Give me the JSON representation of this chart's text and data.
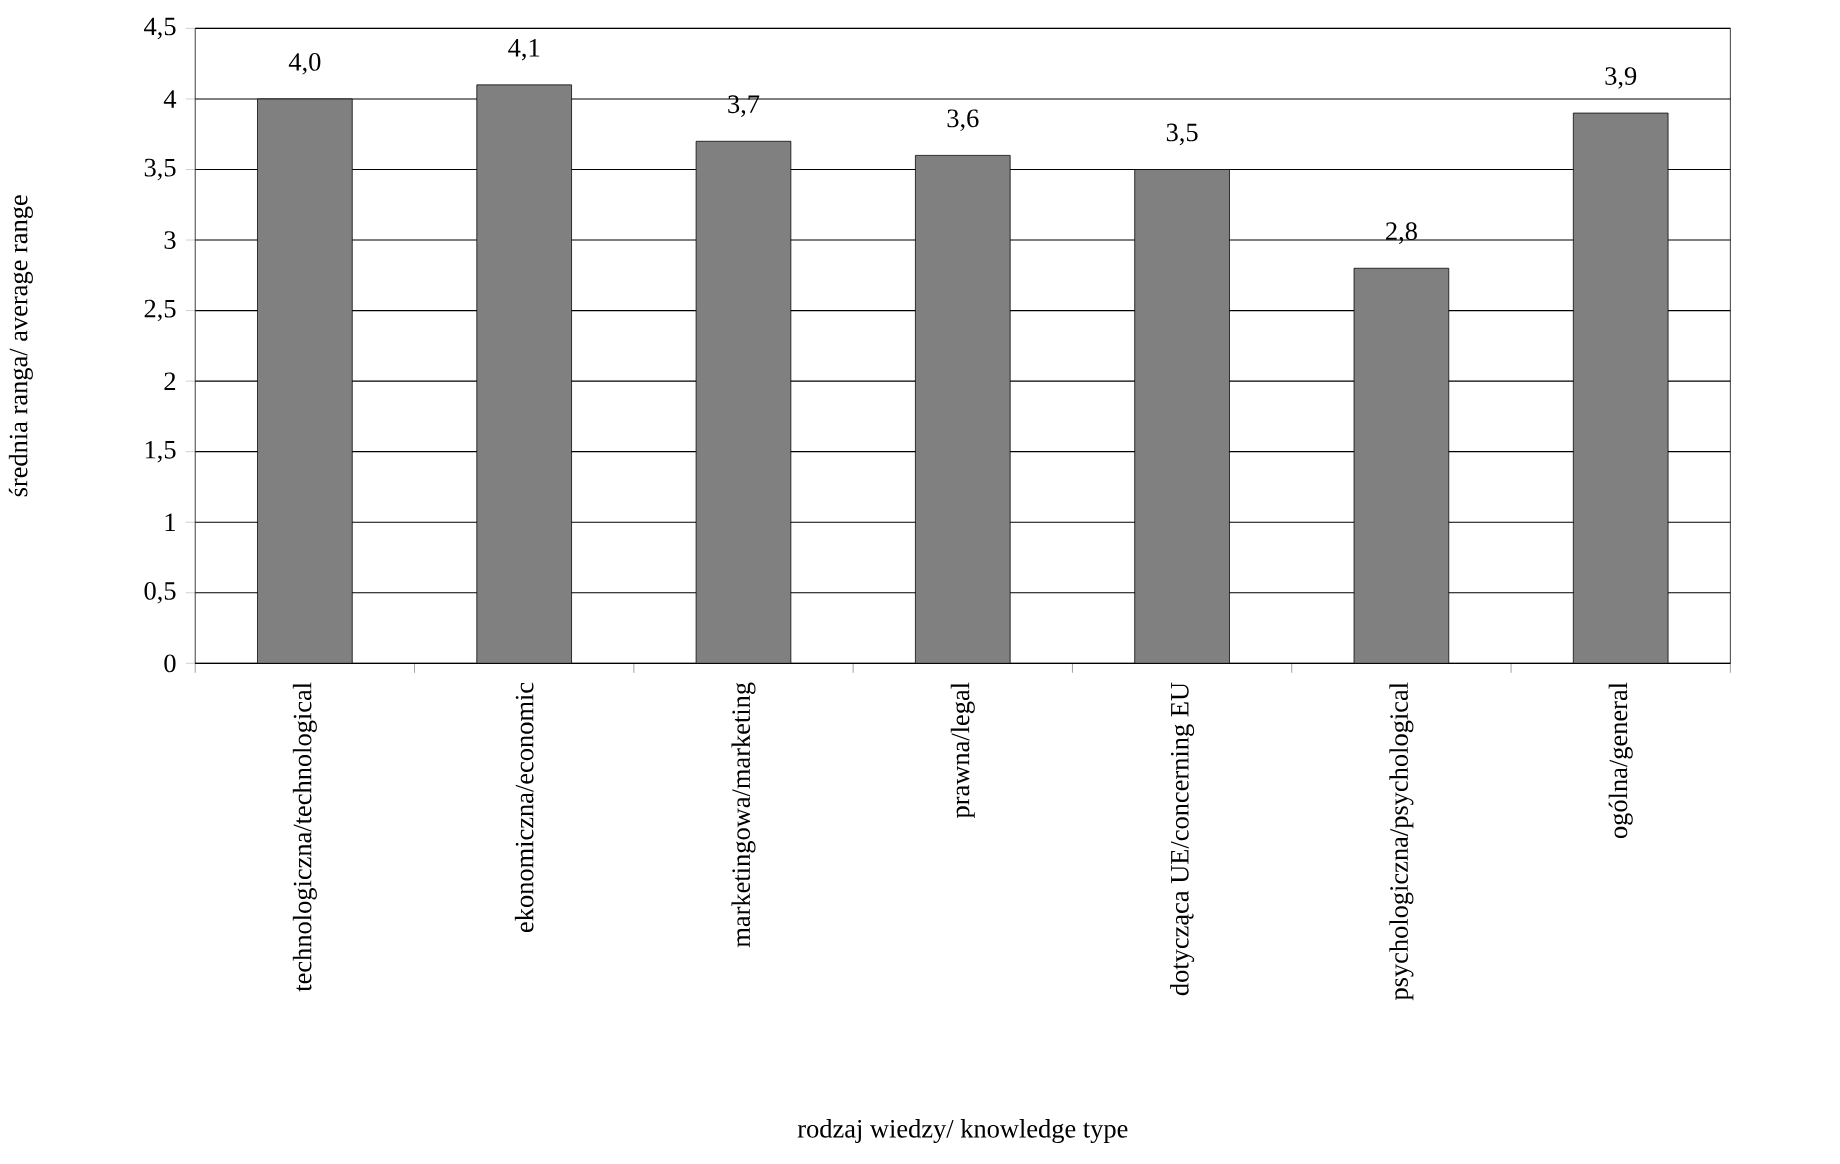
{
  "chart_data": {
    "type": "bar",
    "xlabel": "rodzaj wiedzy/ knowledge type",
    "ylabel": "średnia ranga/ average range",
    "categories": [
      "technologiczna/technological",
      "ekonomiczna/economic",
      "marketingowa/marketing",
      "prawna/legal",
      "dotycząca UE/concerning EU",
      "psychologiczna/psychological",
      "ogólna/general"
    ],
    "values": [
      4.0,
      4.1,
      3.7,
      3.6,
      3.5,
      2.8,
      3.9
    ],
    "value_labels": [
      "4,0",
      "4,1",
      "3,7",
      "3,6",
      "3,5",
      "2,8",
      "3,9"
    ],
    "color": "#808080",
    "ylim": [
      0,
      4.5
    ],
    "yticks": [
      0,
      {
        "value": 0.5,
        "label": "0,5"
      },
      1,
      {
        "value": 1.5,
        "label": "1,5"
      },
      2,
      {
        "value": 2.5,
        "label": "2,5"
      },
      3,
      {
        "value": 3.5,
        "label": "3,5"
      },
      4,
      {
        "value": 4.5,
        "label": "4,5"
      }
    ],
    "grid": "y"
  }
}
